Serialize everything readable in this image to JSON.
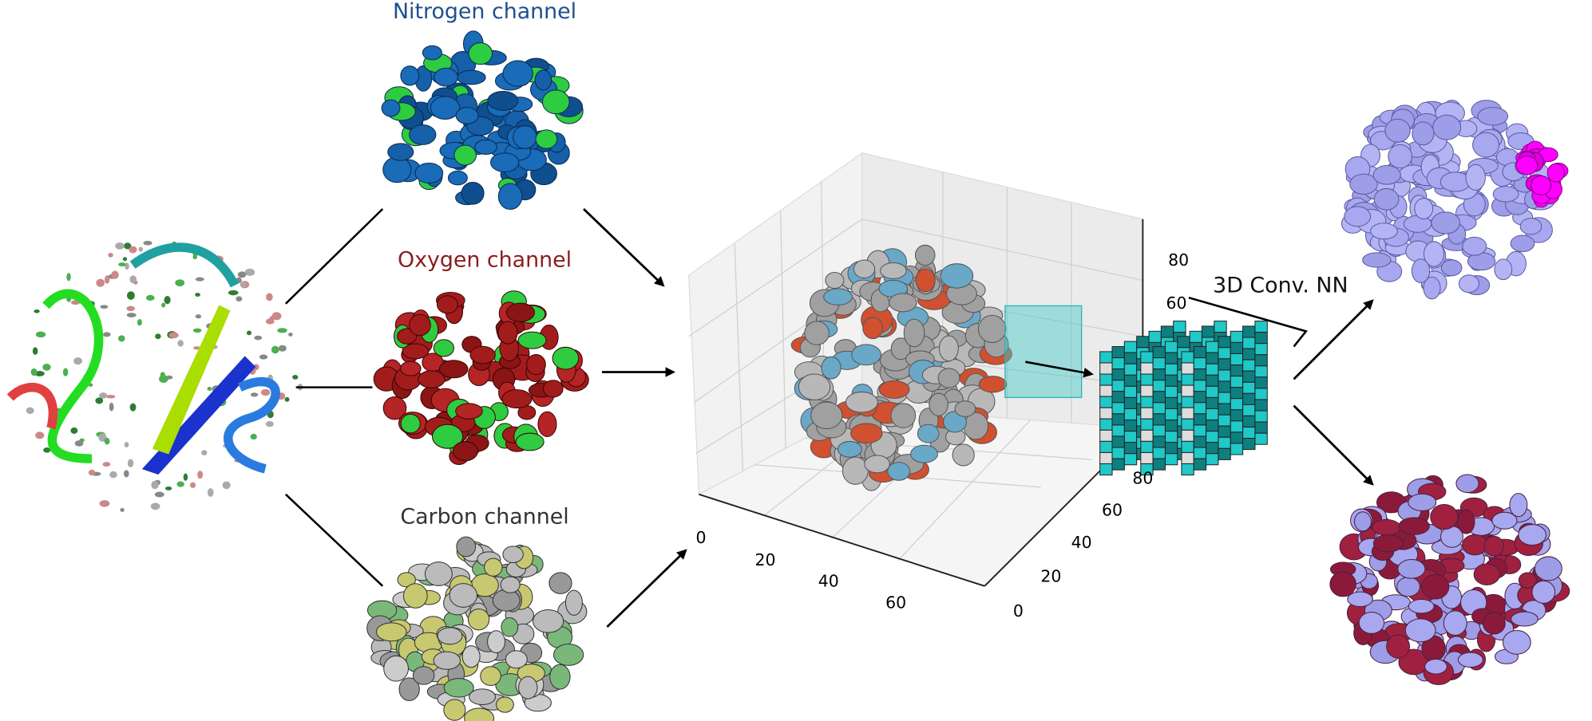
{
  "labels": {
    "nitrogen": "Nitrogen channel",
    "oxygen": "Oxygen channel",
    "carbon": "Carbon channel",
    "network": "3D Conv. NN"
  },
  "axes": {
    "x_ticks": [
      "0",
      "20",
      "40",
      "60"
    ],
    "y_ticks": [
      "0",
      "20",
      "40",
      "60",
      "80"
    ],
    "z_ticks": [
      "60",
      "80"
    ]
  }
}
